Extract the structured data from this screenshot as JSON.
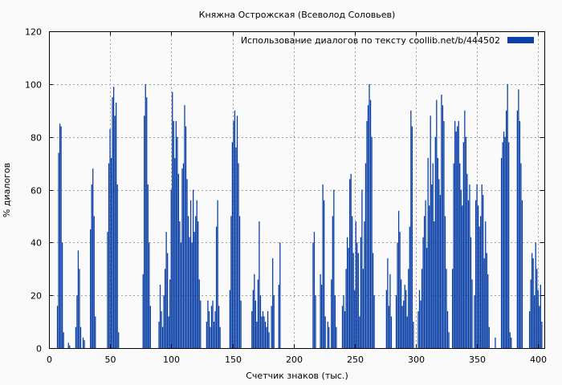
{
  "chart_data": {
    "type": "bar",
    "title": "Княжна Острожская (Всеволод Соловьев)",
    "xlabel": "Счетчик знаков (тыс.)",
    "ylabel": "% диалогов",
    "xlim": [
      0,
      405
    ],
    "ylim": [
      0,
      120
    ],
    "xticks": [
      0,
      50,
      100,
      150,
      200,
      250,
      300,
      350,
      400
    ],
    "yticks": [
      0,
      20,
      40,
      60,
      80,
      100,
      120
    ],
    "grid": true,
    "legend_position": "top-right",
    "series": [
      {
        "name": "Использование диалогов по тексту  coollib.net/b/444502",
        "color": "#0a3fa6",
        "points": [
          [
            7,
            16
          ],
          [
            8,
            74
          ],
          [
            9,
            85
          ],
          [
            10,
            84
          ],
          [
            11,
            40
          ],
          [
            12,
            6
          ],
          [
            16,
            2
          ],
          [
            17,
            1
          ],
          [
            22,
            8
          ],
          [
            23,
            20
          ],
          [
            24,
            37
          ],
          [
            25,
            30
          ],
          [
            26,
            8
          ],
          [
            28,
            4
          ],
          [
            29,
            3
          ],
          [
            34,
            45
          ],
          [
            35,
            62
          ],
          [
            36,
            68
          ],
          [
            37,
            50
          ],
          [
            38,
            12
          ],
          [
            48,
            44
          ],
          [
            49,
            70
          ],
          [
            50,
            83
          ],
          [
            51,
            72
          ],
          [
            52,
            95
          ],
          [
            53,
            99
          ],
          [
            54,
            88
          ],
          [
            55,
            93
          ],
          [
            56,
            62
          ],
          [
            57,
            6
          ],
          [
            77,
            28
          ],
          [
            78,
            88
          ],
          [
            79,
            100
          ],
          [
            80,
            95
          ],
          [
            81,
            62
          ],
          [
            82,
            40
          ],
          [
            83,
            16
          ],
          [
            90,
            10
          ],
          [
            91,
            24
          ],
          [
            92,
            14
          ],
          [
            93,
            8
          ],
          [
            94,
            20
          ],
          [
            95,
            30
          ],
          [
            96,
            44
          ],
          [
            97,
            36
          ],
          [
            98,
            12
          ],
          [
            99,
            26
          ],
          [
            100,
            60
          ],
          [
            101,
            97
          ],
          [
            102,
            86
          ],
          [
            103,
            72
          ],
          [
            104,
            86
          ],
          [
            105,
            80
          ],
          [
            106,
            66
          ],
          [
            107,
            48
          ],
          [
            108,
            40
          ],
          [
            109,
            68
          ],
          [
            110,
            70
          ],
          [
            111,
            92
          ],
          [
            112,
            84
          ],
          [
            113,
            64
          ],
          [
            114,
            50
          ],
          [
            115,
            42
          ],
          [
            116,
            56
          ],
          [
            117,
            40
          ],
          [
            118,
            60
          ],
          [
            119,
            44
          ],
          [
            120,
            50
          ],
          [
            121,
            56
          ],
          [
            122,
            48
          ],
          [
            123,
            26
          ],
          [
            124,
            18
          ],
          [
            129,
            10
          ],
          [
            130,
            18
          ],
          [
            131,
            14
          ],
          [
            132,
            8
          ],
          [
            133,
            16
          ],
          [
            134,
            18
          ],
          [
            135,
            10
          ],
          [
            136,
            14
          ],
          [
            137,
            46
          ],
          [
            138,
            56
          ],
          [
            139,
            16
          ],
          [
            140,
            8
          ],
          [
            148,
            22
          ],
          [
            149,
            50
          ],
          [
            150,
            78
          ],
          [
            151,
            86
          ],
          [
            152,
            90
          ],
          [
            153,
            76
          ],
          [
            154,
            88
          ],
          [
            155,
            70
          ],
          [
            156,
            50
          ],
          [
            157,
            18
          ],
          [
            166,
            14
          ],
          [
            167,
            22
          ],
          [
            168,
            28
          ],
          [
            169,
            18
          ],
          [
            170,
            10
          ],
          [
            171,
            26
          ],
          [
            172,
            48
          ],
          [
            173,
            20
          ],
          [
            174,
            12
          ],
          [
            175,
            14
          ],
          [
            176,
            12
          ],
          [
            177,
            10
          ],
          [
            178,
            8
          ],
          [
            179,
            14
          ],
          [
            180,
            6
          ],
          [
            182,
            16
          ],
          [
            183,
            34
          ],
          [
            184,
            20
          ],
          [
            188,
            24
          ],
          [
            189,
            40
          ],
          [
            216,
            40
          ],
          [
            217,
            44
          ],
          [
            218,
            20
          ],
          [
            222,
            28
          ],
          [
            223,
            24
          ],
          [
            224,
            62
          ],
          [
            225,
            56
          ],
          [
            226,
            12
          ],
          [
            228,
            10
          ],
          [
            229,
            8
          ],
          [
            231,
            26
          ],
          [
            232,
            50
          ],
          [
            233,
            60
          ],
          [
            234,
            20
          ],
          [
            235,
            8
          ],
          [
            240,
            16
          ],
          [
            241,
            20
          ],
          [
            242,
            14
          ],
          [
            243,
            30
          ],
          [
            244,
            42
          ],
          [
            245,
            38
          ],
          [
            246,
            64
          ],
          [
            247,
            66
          ],
          [
            248,
            50
          ],
          [
            249,
            36
          ],
          [
            250,
            22
          ],
          [
            251,
            48
          ],
          [
            252,
            40
          ],
          [
            253,
            36
          ],
          [
            254,
            12
          ],
          [
            255,
            42
          ],
          [
            256,
            60
          ],
          [
            257,
            30
          ],
          [
            258,
            48
          ],
          [
            259,
            70
          ],
          [
            260,
            86
          ],
          [
            261,
            92
          ],
          [
            262,
            100
          ],
          [
            263,
            94
          ],
          [
            264,
            80
          ],
          [
            265,
            36
          ],
          [
            266,
            20
          ],
          [
            276,
            22
          ],
          [
            277,
            34
          ],
          [
            278,
            16
          ],
          [
            279,
            28
          ],
          [
            280,
            12
          ],
          [
            284,
            20
          ],
          [
            285,
            40
          ],
          [
            286,
            52
          ],
          [
            287,
            44
          ],
          [
            288,
            26
          ],
          [
            289,
            16
          ],
          [
            290,
            18
          ],
          [
            291,
            24
          ],
          [
            292,
            22
          ],
          [
            293,
            12
          ],
          [
            294,
            30
          ],
          [
            295,
            46
          ],
          [
            296,
            90
          ],
          [
            297,
            84
          ],
          [
            298,
            10
          ],
          [
            302,
            14
          ],
          [
            303,
            22
          ],
          [
            304,
            18
          ],
          [
            305,
            30
          ],
          [
            306,
            42
          ],
          [
            307,
            50
          ],
          [
            308,
            56
          ],
          [
            309,
            38
          ],
          [
            310,
            72
          ],
          [
            311,
            54
          ],
          [
            312,
            88
          ],
          [
            313,
            62
          ],
          [
            314,
            70
          ],
          [
            315,
            48
          ],
          [
            316,
            80
          ],
          [
            317,
            94
          ],
          [
            318,
            72
          ],
          [
            319,
            64
          ],
          [
            320,
            58
          ],
          [
            321,
            96
          ],
          [
            322,
            92
          ],
          [
            323,
            86
          ],
          [
            324,
            50
          ],
          [
            325,
            30
          ],
          [
            326,
            14
          ],
          [
            327,
            6
          ],
          [
            330,
            30
          ],
          [
            331,
            70
          ],
          [
            332,
            86
          ],
          [
            333,
            82
          ],
          [
            334,
            84
          ],
          [
            335,
            86
          ],
          [
            336,
            70
          ],
          [
            337,
            60
          ],
          [
            338,
            54
          ],
          [
            339,
            78
          ],
          [
            340,
            90
          ],
          [
            341,
            80
          ],
          [
            342,
            66
          ],
          [
            343,
            56
          ],
          [
            344,
            62
          ],
          [
            345,
            42
          ],
          [
            346,
            26
          ],
          [
            348,
            20
          ],
          [
            349,
            56
          ],
          [
            350,
            62
          ],
          [
            351,
            54
          ],
          [
            352,
            46
          ],
          [
            353,
            50
          ],
          [
            354,
            62
          ],
          [
            355,
            58
          ],
          [
            356,
            34
          ],
          [
            357,
            48
          ],
          [
            358,
            36
          ],
          [
            359,
            28
          ],
          [
            360,
            8
          ],
          [
            365,
            4
          ],
          [
            370,
            72
          ],
          [
            371,
            78
          ],
          [
            372,
            82
          ],
          [
            373,
            80
          ],
          [
            374,
            90
          ],
          [
            375,
            100
          ],
          [
            376,
            78
          ],
          [
            377,
            6
          ],
          [
            378,
            4
          ],
          [
            383,
            90
          ],
          [
            384,
            98
          ],
          [
            385,
            86
          ],
          [
            386,
            70
          ],
          [
            387,
            56
          ],
          [
            393,
            14
          ],
          [
            394,
            26
          ],
          [
            395,
            36
          ],
          [
            396,
            34
          ],
          [
            397,
            20
          ],
          [
            398,
            40
          ],
          [
            399,
            30
          ],
          [
            400,
            22
          ],
          [
            401,
            16
          ],
          [
            402,
            24
          ],
          [
            403,
            10
          ]
        ]
      }
    ]
  }
}
